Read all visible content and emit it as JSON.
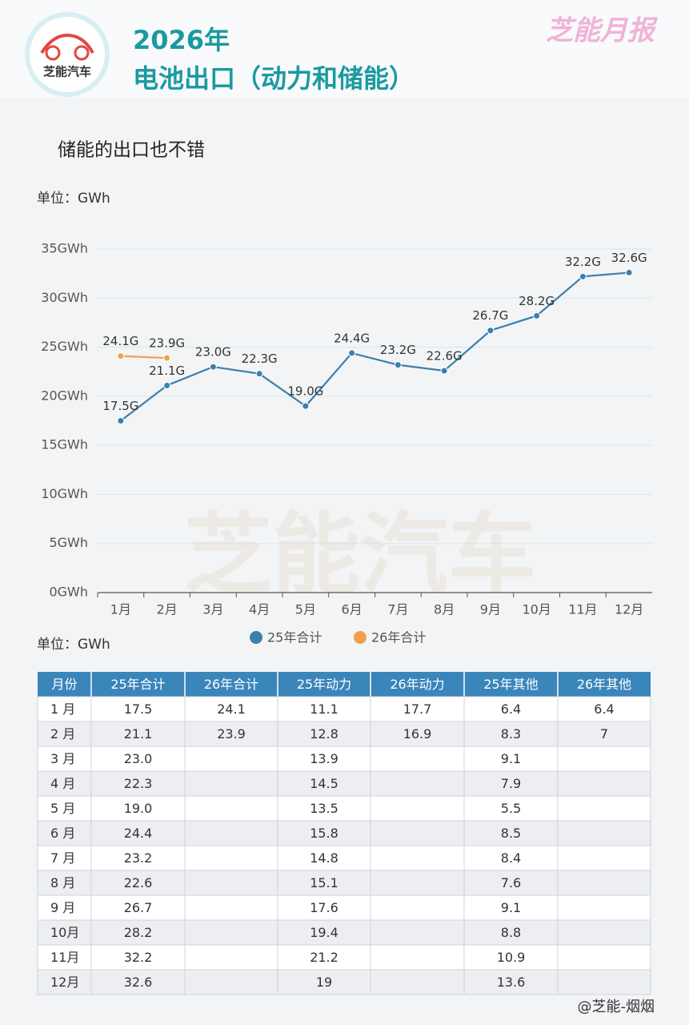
{
  "header": {
    "brand": "芝能汽车",
    "year": "2026年",
    "title": "电池出口（动力和储能）",
    "report": "芝能月报"
  },
  "subtitle": "储能的出口也不错",
  "unit_chart": "单位：GWh",
  "chart_data": {
    "type": "line",
    "categories": [
      "1月",
      "2月",
      "3月",
      "4月",
      "5月",
      "6月",
      "7月",
      "8月",
      "9月",
      "10月",
      "11月",
      "12月"
    ],
    "series": [
      {
        "name": "25年合计",
        "color": "#3b7fae",
        "values": [
          17.5,
          21.1,
          23.0,
          22.3,
          19.0,
          24.4,
          23.2,
          22.6,
          26.7,
          28.2,
          32.2,
          32.6
        ],
        "value_labels": [
          "17.5G",
          "21.1G",
          "23.0G",
          "22.3G",
          "19.0G",
          "24.4G",
          "23.2G",
          "22.6G",
          "26.7G",
          "28.2G",
          "32.2G",
          "32.6G"
        ]
      },
      {
        "name": "26年合计",
        "color": "#f0a04b",
        "values": [
          24.1,
          23.9,
          null,
          null,
          null,
          null,
          null,
          null,
          null,
          null,
          null,
          null
        ],
        "value_labels": [
          "24.1G",
          "23.9G",
          null,
          null,
          null,
          null,
          null,
          null,
          null,
          null,
          null,
          null
        ]
      }
    ],
    "ylim": [
      0,
      35
    ],
    "yticks": [
      {
        "value": 0,
        "label": "0GWh"
      },
      {
        "value": 5,
        "label": "5GWh"
      },
      {
        "value": 10,
        "label": "10GWh"
      },
      {
        "value": 15,
        "label": "15GWh"
      },
      {
        "value": 20,
        "label": "20GWh"
      },
      {
        "value": 25,
        "label": "25GWh"
      },
      {
        "value": 30,
        "label": "30GWh"
      },
      {
        "value": 35,
        "label": "35GWh"
      }
    ],
    "grid": true,
    "legend": "bottom"
  },
  "unit_table": "单位：GWh",
  "table": {
    "columns": [
      "月份",
      "25年合计",
      "26年合计",
      "25年动力",
      "26年动力",
      "25年其他",
      "26年其他"
    ],
    "rows": [
      [
        "1 月",
        "17.5",
        "24.1",
        "11.1",
        "17.7",
        "6.4",
        "6.4"
      ],
      [
        "2 月",
        "21.1",
        "23.9",
        "12.8",
        "16.9",
        "8.3",
        "7"
      ],
      [
        "3 月",
        "23.0",
        null,
        "13.9",
        null,
        "9.1",
        null
      ],
      [
        "4 月",
        "22.3",
        null,
        "14.5",
        null,
        "7.9",
        null
      ],
      [
        "5 月",
        "19.0",
        null,
        "13.5",
        null,
        "5.5",
        null
      ],
      [
        "6 月",
        "24.4",
        null,
        "15.8",
        null,
        "8.5",
        null
      ],
      [
        "7 月",
        "23.2",
        null,
        "14.8",
        null,
        "8.4",
        null
      ],
      [
        "8 月",
        "22.6",
        null,
        "15.1",
        null,
        "7.6",
        null
      ],
      [
        "9 月",
        "26.7",
        null,
        "17.6",
        null,
        "9.1",
        null
      ],
      [
        "10月",
        "28.2",
        null,
        "19.4",
        null,
        "8.8",
        null
      ],
      [
        "11月",
        "32.2",
        null,
        "21.2",
        null,
        "10.9",
        null
      ],
      [
        "12月",
        "32.6",
        null,
        "19",
        null,
        "13.6",
        null
      ]
    ]
  },
  "footer": "@芝能-烟烟"
}
